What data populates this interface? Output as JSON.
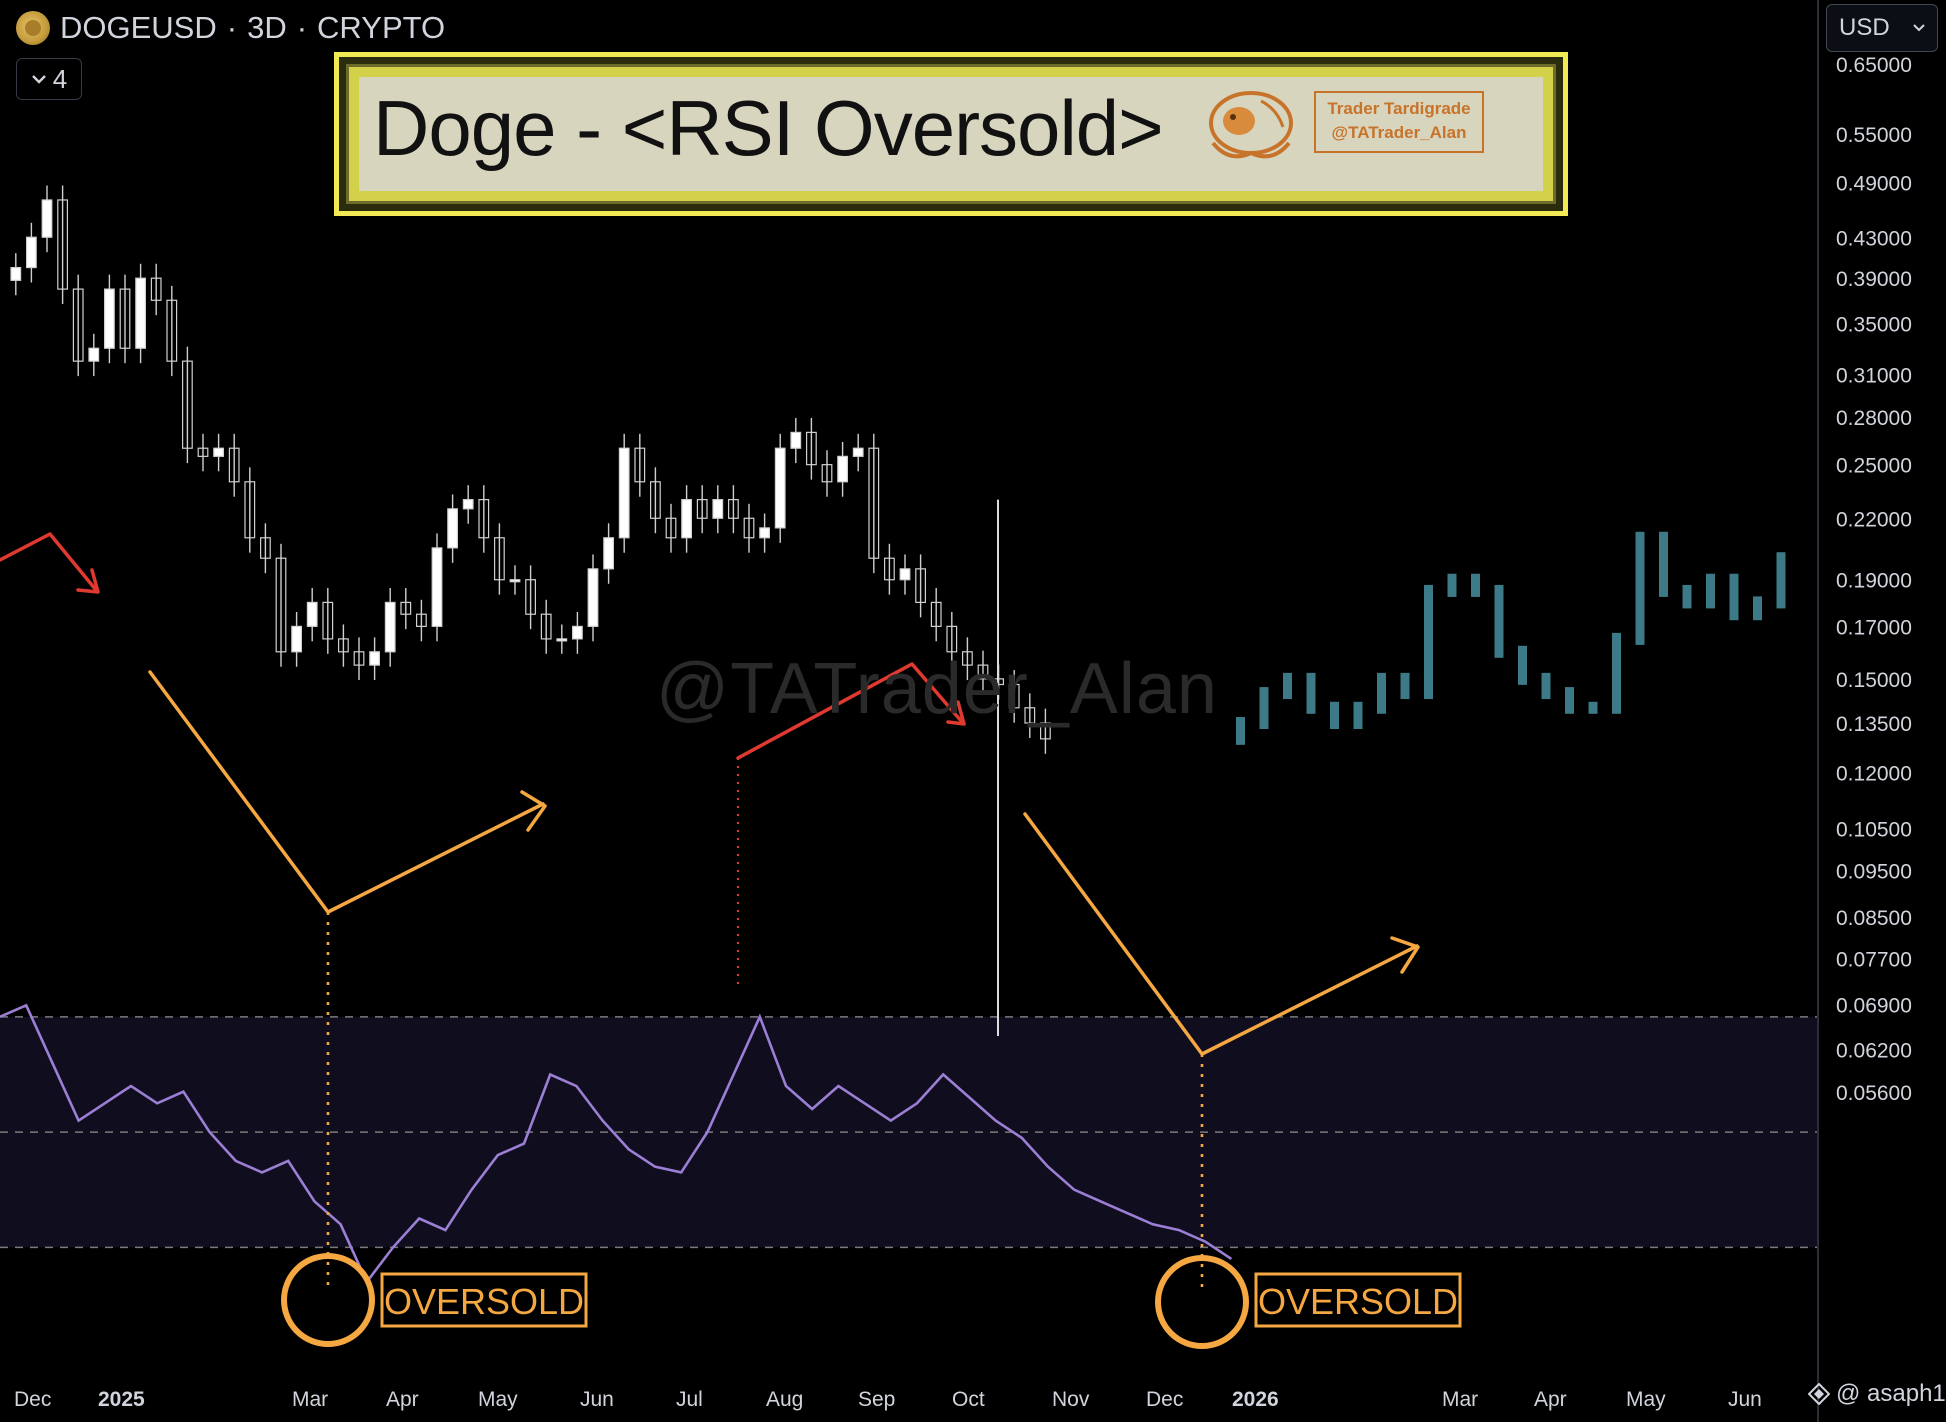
{
  "header": {
    "symbol": "DOGEUSD",
    "interval": "3D",
    "market": "CRYPTO",
    "separator": "·",
    "interval_selector": "4",
    "currency": "USD"
  },
  "banner": {
    "title": "Doge - <RSI Oversold>",
    "tag_line1": "Trader Tardigrade",
    "tag_line2": "@TATrader_Alan"
  },
  "watermark": "@TATrader_Alan",
  "attribution": "@ asaph1",
  "annotations": {
    "oversold_1": "OVERSOLD",
    "oversold_2": "OVERSOLD"
  },
  "colors": {
    "candle_up": "#ffffff",
    "candle_down": "#bdbdbd",
    "projection": "#3b7a86",
    "rsi_line": "#9b7fd4",
    "rsi_band": "#100d1f",
    "orange": "#f5a742",
    "red": "#e03a30"
  },
  "chart_data": {
    "type": "candlestick",
    "title": "Doge - <RSI Oversold>",
    "symbol": "DOGEUSD",
    "interval": "3D",
    "y_scale": "log",
    "y_ticks": [
      0.65,
      0.55,
      0.49,
      0.43,
      0.39,
      0.35,
      0.31,
      0.28,
      0.25,
      0.22,
      0.19,
      0.17,
      0.15,
      0.135,
      0.12,
      0.105,
      0.095,
      0.085,
      0.077,
      0.069,
      0.062,
      0.056
    ],
    "y_tick_labels": [
      "0.65000",
      "0.55000",
      "0.49000",
      "0.43000",
      "0.39000",
      "0.35000",
      "0.31000",
      "0.28000",
      "0.25000",
      "0.22000",
      "0.19000",
      "0.17000",
      "0.15000",
      "0.13500",
      "0.12000",
      "0.10500",
      "0.09500",
      "0.08500",
      "0.07700",
      "0.06900",
      "0.06200",
      "0.05600"
    ],
    "x_tick_labels": [
      "Dec",
      "2025",
      "Mar",
      "Apr",
      "May",
      "Jun",
      "Jul",
      "Aug",
      "Sep",
      "Oct",
      "Nov",
      "Dec",
      "2026",
      "Mar",
      "Apr",
      "May",
      "Jun"
    ],
    "price_path": [
      {
        "t": 0,
        "p": 0.4
      },
      {
        "t": 1,
        "p": 0.43
      },
      {
        "t": 2,
        "p": 0.47
      },
      {
        "t": 3,
        "p": 0.38
      },
      {
        "t": 4,
        "p": 0.32
      },
      {
        "t": 5,
        "p": 0.33
      },
      {
        "t": 6,
        "p": 0.38
      },
      {
        "t": 7,
        "p": 0.33
      },
      {
        "t": 8,
        "p": 0.39
      },
      {
        "t": 9,
        "p": 0.37
      },
      {
        "t": 10,
        "p": 0.32
      },
      {
        "t": 11,
        "p": 0.26
      },
      {
        "t": 12,
        "p": 0.255
      },
      {
        "t": 13,
        "p": 0.26
      },
      {
        "t": 14,
        "p": 0.24
      },
      {
        "t": 15,
        "p": 0.21
      },
      {
        "t": 16,
        "p": 0.2
      },
      {
        "t": 17,
        "p": 0.16
      },
      {
        "t": 18,
        "p": 0.17
      },
      {
        "t": 19,
        "p": 0.18
      },
      {
        "t": 20,
        "p": 0.165
      },
      {
        "t": 21,
        "p": 0.16
      },
      {
        "t": 22,
        "p": 0.155
      },
      {
        "t": 23,
        "p": 0.16
      },
      {
        "t": 24,
        "p": 0.18
      },
      {
        "t": 25,
        "p": 0.175
      },
      {
        "t": 26,
        "p": 0.17
      },
      {
        "t": 27,
        "p": 0.205
      },
      {
        "t": 28,
        "p": 0.225
      },
      {
        "t": 29,
        "p": 0.23
      },
      {
        "t": 30,
        "p": 0.21
      },
      {
        "t": 31,
        "p": 0.19
      },
      {
        "t": 32,
        "p": 0.19
      },
      {
        "t": 33,
        "p": 0.175
      },
      {
        "t": 34,
        "p": 0.165
      },
      {
        "t": 35,
        "p": 0.165
      },
      {
        "t": 36,
        "p": 0.17
      },
      {
        "t": 37,
        "p": 0.195
      },
      {
        "t": 38,
        "p": 0.21
      },
      {
        "t": 39,
        "p": 0.26
      },
      {
        "t": 40,
        "p": 0.24
      },
      {
        "t": 41,
        "p": 0.22
      },
      {
        "t": 42,
        "p": 0.21
      },
      {
        "t": 43,
        "p": 0.23
      },
      {
        "t": 44,
        "p": 0.22
      },
      {
        "t": 45,
        "p": 0.23
      },
      {
        "t": 46,
        "p": 0.22
      },
      {
        "t": 47,
        "p": 0.21
      },
      {
        "t": 48,
        "p": 0.215
      },
      {
        "t": 49,
        "p": 0.26
      },
      {
        "t": 50,
        "p": 0.27
      },
      {
        "t": 51,
        "p": 0.25
      },
      {
        "t": 52,
        "p": 0.24
      },
      {
        "t": 53,
        "p": 0.255
      },
      {
        "t": 54,
        "p": 0.26
      },
      {
        "t": 55,
        "p": 0.2
      },
      {
        "t": 56,
        "p": 0.19
      },
      {
        "t": 57,
        "p": 0.195
      },
      {
        "t": 58,
        "p": 0.18
      },
      {
        "t": 59,
        "p": 0.17
      },
      {
        "t": 60,
        "p": 0.16
      },
      {
        "t": 61,
        "p": 0.155
      },
      {
        "t": 62,
        "p": 0.15
      },
      {
        "t": 63,
        "p": 0.148
      },
      {
        "t": 64,
        "p": 0.14
      },
      {
        "t": 65,
        "p": 0.135
      },
      {
        "t": 66,
        "p": 0.13
      }
    ],
    "projection_path": [
      {
        "t": 67,
        "p": 0.135
      },
      {
        "t": 68,
        "p": 0.145
      },
      {
        "t": 69,
        "p": 0.15
      },
      {
        "t": 70,
        "p": 0.14
      },
      {
        "t": 71,
        "p": 0.135
      },
      {
        "t": 72,
        "p": 0.14
      },
      {
        "t": 73,
        "p": 0.15
      },
      {
        "t": 74,
        "p": 0.145
      },
      {
        "t": 75,
        "p": 0.185
      },
      {
        "t": 76,
        "p": 0.19
      },
      {
        "t": 77,
        "p": 0.185
      },
      {
        "t": 78,
        "p": 0.16
      },
      {
        "t": 79,
        "p": 0.15
      },
      {
        "t": 80,
        "p": 0.145
      },
      {
        "t": 81,
        "p": 0.14
      },
      {
        "t": 82,
        "p": 0.14
      },
      {
        "t": 83,
        "p": 0.165
      },
      {
        "t": 84,
        "p": 0.21
      },
      {
        "t": 85,
        "p": 0.185
      },
      {
        "t": 86,
        "p": 0.18
      },
      {
        "t": 87,
        "p": 0.19
      },
      {
        "t": 88,
        "p": 0.175
      },
      {
        "t": 89,
        "p": 0.18
      },
      {
        "t": 90,
        "p": 0.2
      }
    ],
    "rsi_path": [
      {
        "t": 0,
        "v": 70
      },
      {
        "t": 1,
        "v": 72
      },
      {
        "t": 2,
        "v": 62
      },
      {
        "t": 3,
        "v": 52
      },
      {
        "t": 4,
        "v": 55
      },
      {
        "t": 5,
        "v": 58
      },
      {
        "t": 6,
        "v": 55
      },
      {
        "t": 7,
        "v": 57
      },
      {
        "t": 8,
        "v": 50
      },
      {
        "t": 9,
        "v": 45
      },
      {
        "t": 10,
        "v": 43
      },
      {
        "t": 11,
        "v": 45
      },
      {
        "t": 12,
        "v": 38
      },
      {
        "t": 13,
        "v": 34
      },
      {
        "t": 14,
        "v": 24
      },
      {
        "t": 15,
        "v": 30
      },
      {
        "t": 16,
        "v": 35
      },
      {
        "t": 17,
        "v": 33
      },
      {
        "t": 18,
        "v": 40
      },
      {
        "t": 19,
        "v": 46
      },
      {
        "t": 20,
        "v": 48
      },
      {
        "t": 21,
        "v": 60
      },
      {
        "t": 22,
        "v": 58
      },
      {
        "t": 23,
        "v": 52
      },
      {
        "t": 24,
        "v": 47
      },
      {
        "t": 25,
        "v": 44
      },
      {
        "t": 26,
        "v": 43
      },
      {
        "t": 27,
        "v": 50
      },
      {
        "t": 28,
        "v": 60
      },
      {
        "t": 29,
        "v": 70
      },
      {
        "t": 30,
        "v": 58
      },
      {
        "t": 31,
        "v": 54
      },
      {
        "t": 32,
        "v": 58
      },
      {
        "t": 33,
        "v": 55
      },
      {
        "t": 34,
        "v": 52
      },
      {
        "t": 35,
        "v": 55
      },
      {
        "t": 36,
        "v": 60
      },
      {
        "t": 37,
        "v": 56
      },
      {
        "t": 38,
        "v": 52
      },
      {
        "t": 39,
        "v": 49
      },
      {
        "t": 40,
        "v": 44
      },
      {
        "t": 41,
        "v": 40
      },
      {
        "t": 42,
        "v": 38
      },
      {
        "t": 43,
        "v": 36
      },
      {
        "t": 44,
        "v": 34
      },
      {
        "t": 45,
        "v": 33
      },
      {
        "t": 46,
        "v": 31
      },
      {
        "t": 47,
        "v": 28
      }
    ],
    "rsi_levels": [
      70,
      50,
      30
    ]
  }
}
